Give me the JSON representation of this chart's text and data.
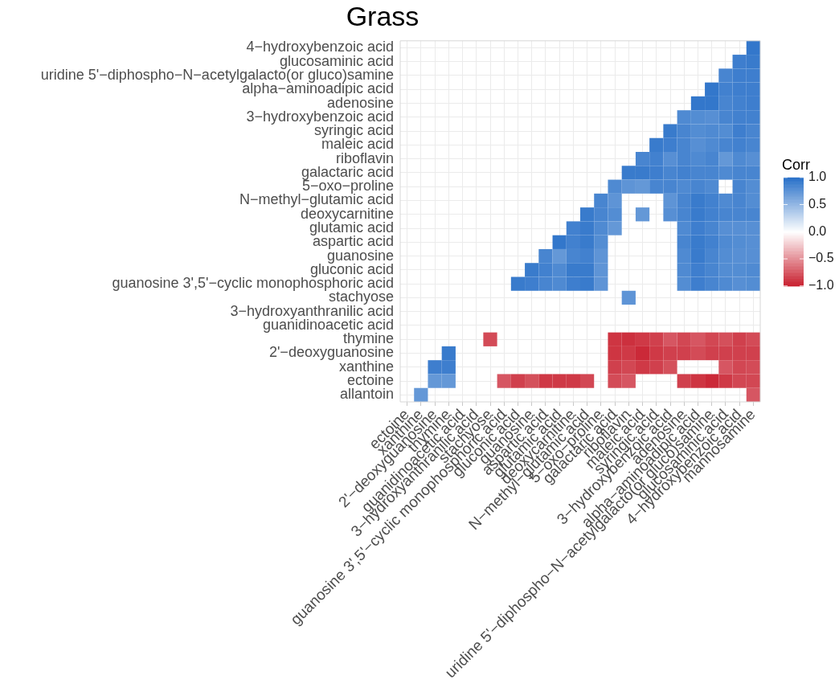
{
  "chart_data": {
    "type": "heatmap",
    "title": "Grass",
    "clabel": "Corr",
    "clim": [
      -1,
      1
    ],
    "cticks": [
      {
        "value": -1,
        "label": "−1.0"
      },
      {
        "value": -0.5,
        "label": "−0.5"
      },
      {
        "value": 0,
        "label": "0.0"
      },
      {
        "value": 0.5,
        "label": "0.5"
      },
      {
        "value": 1,
        "label": "1.0"
      }
    ],
    "grid": true,
    "categories": [
      "ectoine",
      "xanthine",
      "2'−deoxyguanosine",
      "thymine",
      "guanidinoacetic acid",
      "3−hydroxyanthranilic acid",
      "stachyose",
      "guanosine 3',5'−cyclic monophosphoric acid",
      "gluconic acid",
      "guanosine",
      "aspartic acid",
      "glutamic acid",
      "deoxycarnitine",
      "N−methyl−glutamic acid",
      "5−oxo−proline",
      "galactaric acid",
      "riboflavin",
      "maleic acid",
      "syringic acid",
      "3−hydroxybenzoic acid",
      "adenosine",
      "alpha−aminoadipic acid",
      "uridine 5'−diphospho−N−acetylgalacto(or gluco)samine",
      "glucosaminic acid",
      "4−hydroxybenzoic acid",
      "mannosamine"
    ],
    "y_categories": [
      "4−hydroxybenzoic acid",
      "glucosaminic acid",
      "uridine 5'−diphospho−N−acetylgalacto(or gluco)samine",
      "alpha−aminoadipic acid",
      "adenosine",
      "3−hydroxybenzoic acid",
      "syringic acid",
      "maleic acid",
      "riboflavin",
      "galactaric acid",
      "5−oxo−proline",
      "N−methyl−glutamic acid",
      "deoxycarnitine",
      "glutamic acid",
      "aspartic acid",
      "guanosine",
      "gluconic acid",
      "guanosine 3',5'−cyclic monophosphoric acid",
      "stachyose",
      "3−hydroxyanthranilic acid",
      "guanidinoacetic acid",
      "thymine",
      "2'−deoxyguanosine",
      "xanthine",
      "ectoine",
      "allantoin"
    ],
    "cells": [
      [
        null,
        null,
        null,
        null,
        null,
        null,
        null,
        null,
        null,
        null,
        null,
        null,
        null,
        null,
        null,
        null,
        null,
        null,
        null,
        null,
        null,
        null,
        null,
        null,
        null,
        0.95
      ],
      [
        null,
        null,
        null,
        null,
        null,
        null,
        null,
        null,
        null,
        null,
        null,
        null,
        null,
        null,
        null,
        null,
        null,
        null,
        null,
        null,
        null,
        null,
        null,
        null,
        0.9,
        0.92
      ],
      [
        null,
        null,
        null,
        null,
        null,
        null,
        null,
        null,
        null,
        null,
        null,
        null,
        null,
        null,
        null,
        null,
        null,
        null,
        null,
        null,
        null,
        null,
        null,
        0.85,
        0.9,
        0.9
      ],
      [
        null,
        null,
        null,
        null,
        null,
        null,
        null,
        null,
        null,
        null,
        null,
        null,
        null,
        null,
        null,
        null,
        null,
        null,
        null,
        null,
        null,
        null,
        0.95,
        0.88,
        0.9,
        0.9
      ],
      [
        null,
        null,
        null,
        null,
        null,
        null,
        null,
        null,
        null,
        null,
        null,
        null,
        null,
        null,
        null,
        null,
        null,
        null,
        null,
        null,
        null,
        0.95,
        0.95,
        0.85,
        0.88,
        0.9
      ],
      [
        null,
        null,
        null,
        null,
        null,
        null,
        null,
        null,
        null,
        null,
        null,
        null,
        null,
        null,
        null,
        null,
        null,
        null,
        null,
        null,
        0.82,
        0.8,
        0.78,
        0.85,
        0.88,
        0.88
      ],
      [
        null,
        null,
        null,
        null,
        null,
        null,
        null,
        null,
        null,
        null,
        null,
        null,
        null,
        null,
        null,
        null,
        null,
        null,
        null,
        0.92,
        0.85,
        0.8,
        0.82,
        0.8,
        0.9,
        0.85
      ],
      [
        null,
        null,
        null,
        null,
        null,
        null,
        null,
        null,
        null,
        null,
        null,
        null,
        null,
        null,
        null,
        null,
        null,
        null,
        0.92,
        0.9,
        0.85,
        0.78,
        0.82,
        0.85,
        0.88,
        0.85
      ],
      [
        null,
        null,
        null,
        null,
        null,
        null,
        null,
        null,
        null,
        null,
        null,
        null,
        null,
        null,
        null,
        null,
        null,
        0.85,
        0.88,
        0.78,
        0.85,
        0.82,
        0.85,
        0.72,
        0.82,
        0.78
      ],
      [
        null,
        null,
        null,
        null,
        null,
        null,
        null,
        null,
        null,
        null,
        null,
        null,
        null,
        null,
        null,
        null,
        0.92,
        0.92,
        0.9,
        0.85,
        0.88,
        0.85,
        0.85,
        0.82,
        0.85,
        0.85
      ],
      [
        null,
        null,
        null,
        null,
        null,
        null,
        null,
        null,
        null,
        null,
        null,
        null,
        null,
        null,
        null,
        0.82,
        0.75,
        0.72,
        0.85,
        0.85,
        0.82,
        0.85,
        0.82,
        null,
        0.85,
        0.8
      ],
      [
        null,
        null,
        null,
        null,
        null,
        null,
        null,
        null,
        null,
        null,
        null,
        null,
        null,
        null,
        0.85,
        0.75,
        null,
        null,
        null,
        0.75,
        0.85,
        0.92,
        0.88,
        0.82,
        0.85,
        0.8
      ],
      [
        null,
        null,
        null,
        null,
        null,
        null,
        null,
        null,
        null,
        null,
        null,
        null,
        null,
        0.92,
        0.85,
        0.8,
        null,
        0.72,
        null,
        0.78,
        0.85,
        0.92,
        0.88,
        0.85,
        0.85,
        0.85
      ],
      [
        null,
        null,
        null,
        null,
        null,
        null,
        null,
        null,
        null,
        null,
        null,
        null,
        0.88,
        0.92,
        0.82,
        0.72,
        null,
        null,
        null,
        null,
        0.82,
        0.9,
        0.85,
        0.78,
        0.78,
        0.78
      ],
      [
        null,
        null,
        null,
        null,
        null,
        null,
        null,
        null,
        null,
        null,
        null,
        0.95,
        0.88,
        0.92,
        0.8,
        null,
        null,
        null,
        null,
        null,
        0.85,
        0.92,
        0.88,
        0.82,
        0.8,
        0.78
      ],
      [
        null,
        null,
        null,
        null,
        null,
        null,
        null,
        null,
        null,
        null,
        0.85,
        0.72,
        0.85,
        0.88,
        0.75,
        null,
        null,
        null,
        null,
        null,
        0.82,
        0.92,
        0.85,
        0.8,
        0.78,
        0.78
      ],
      [
        null,
        null,
        null,
        null,
        null,
        null,
        null,
        null,
        null,
        0.92,
        0.88,
        0.82,
        0.92,
        0.92,
        0.75,
        null,
        null,
        null,
        null,
        null,
        0.82,
        0.9,
        0.85,
        0.8,
        0.8,
        0.82
      ],
      [
        null,
        null,
        null,
        null,
        null,
        null,
        null,
        null,
        0.92,
        0.9,
        0.85,
        0.82,
        0.9,
        0.92,
        0.75,
        null,
        null,
        null,
        null,
        null,
        0.8,
        0.9,
        0.85,
        0.82,
        0.78,
        0.8
      ],
      [
        null,
        null,
        null,
        null,
        null,
        null,
        null,
        null,
        null,
        null,
        null,
        null,
        null,
        null,
        null,
        null,
        0.75,
        null,
        null,
        null,
        null,
        null,
        null,
        null,
        null,
        null
      ],
      [
        null,
        null,
        null,
        null,
        null,
        null,
        null,
        null,
        null,
        null,
        null,
        null,
        null,
        null,
        null,
        null,
        null,
        null,
        null,
        null,
        null,
        null,
        null,
        null,
        null,
        null
      ],
      [
        null,
        null,
        null,
        null,
        null,
        null,
        null,
        null,
        null,
        null,
        null,
        null,
        null,
        null,
        null,
        null,
        null,
        null,
        null,
        null,
        null,
        null,
        null,
        null,
        null,
        null
      ],
      [
        null,
        null,
        null,
        null,
        null,
        null,
        -0.8,
        null,
        null,
        null,
        null,
        null,
        null,
        null,
        null,
        -0.9,
        -0.92,
        -0.88,
        -0.85,
        -0.75,
        -0.82,
        -0.75,
        -0.82,
        -0.78,
        -0.85,
        -0.8
      ],
      [
        null,
        null,
        null,
        0.92,
        null,
        null,
        null,
        null,
        null,
        null,
        null,
        null,
        null,
        null,
        null,
        -0.9,
        -0.88,
        -0.95,
        -0.88,
        -0.85,
        -0.85,
        -0.8,
        -0.85,
        -0.85,
        -0.85,
        -0.85
      ],
      [
        null,
        null,
        0.9,
        0.9,
        null,
        null,
        null,
        null,
        null,
        null,
        null,
        null,
        null,
        null,
        null,
        -0.85,
        -0.82,
        -0.88,
        -0.85,
        -0.78,
        null,
        null,
        null,
        -0.75,
        -0.82,
        -0.8
      ],
      [
        null,
        null,
        0.72,
        0.72,
        null,
        null,
        null,
        -0.75,
        -0.85,
        -0.78,
        -0.88,
        -0.88,
        -0.88,
        -0.82,
        null,
        -0.8,
        -0.75,
        null,
        null,
        null,
        -0.85,
        -0.9,
        -0.95,
        -0.88,
        -0.82,
        -0.82
      ],
      [
        null,
        0.72,
        null,
        null,
        null,
        null,
        null,
        null,
        null,
        null,
        null,
        null,
        null,
        null,
        null,
        null,
        null,
        null,
        null,
        null,
        null,
        null,
        null,
        null,
        null,
        -0.75
      ]
    ]
  }
}
